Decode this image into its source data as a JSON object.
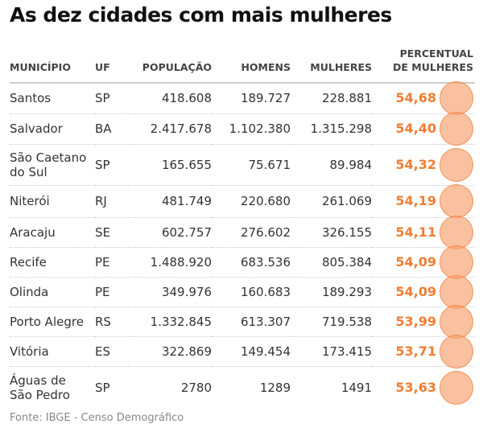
{
  "title": "As dez cidades com mais mulheres",
  "headers": {
    "municipio": "MUNICÍPIO",
    "uf": "UF",
    "populacao": "POPULAÇÃO",
    "homens": "HOMENS",
    "mulheres": "MULHERES",
    "percentual_1": "PERCENTUAL",
    "percentual_2": "DE MULHERES"
  },
  "source": "Fonte: IBGE - Censo Demográfico",
  "colors": {
    "accent": "#f07d32",
    "circle_fill": "#f8a06e"
  },
  "chart_data": {
    "type": "table",
    "title": "As dez cidades com mais mulheres",
    "rows": [
      {
        "municipio": "Santos",
        "uf": "SP",
        "populacao": "418.608",
        "homens": "189.727",
        "mulheres": "228.881",
        "percentual": "54,68"
      },
      {
        "municipio": "Salvador",
        "uf": "BA",
        "populacao": "2.417.678",
        "homens": "1.102.380",
        "mulheres": "1.315.298",
        "percentual": "54,40"
      },
      {
        "municipio": "São Caetano do Sul",
        "uf": "SP",
        "populacao": "165.655",
        "homens": "75.671",
        "mulheres": "89.984",
        "percentual": "54,32"
      },
      {
        "municipio": "Niterói",
        "uf": "RJ",
        "populacao": "481.749",
        "homens": "220.680",
        "mulheres": "261.069",
        "percentual": "54,19"
      },
      {
        "municipio": "Aracaju",
        "uf": "SE",
        "populacao": "602.757",
        "homens": "276.602",
        "mulheres": "326.155",
        "percentual": "54,11"
      },
      {
        "municipio": "Recife",
        "uf": "PE",
        "populacao": "1.488.920",
        "homens": "683.536",
        "mulheres": "805.384",
        "percentual": "54,09"
      },
      {
        "municipio": "Olinda",
        "uf": "PE",
        "populacao": "349.976",
        "homens": "160.683",
        "mulheres": "189.293",
        "percentual": "54,09"
      },
      {
        "municipio": "Porto Alegre",
        "uf": "RS",
        "populacao": "1.332.845",
        "homens": "613.307",
        "mulheres": "719.538",
        "percentual": "53,99"
      },
      {
        "municipio": "Vitória",
        "uf": "ES",
        "populacao": "322.869",
        "homens": "149.454",
        "mulheres": "173.415",
        "percentual": "53,71"
      },
      {
        "municipio": "Águas de São Pedro",
        "uf": "SP",
        "populacao": "2780",
        "homens": "1289",
        "mulheres": "1491",
        "percentual": "53,63"
      }
    ]
  }
}
